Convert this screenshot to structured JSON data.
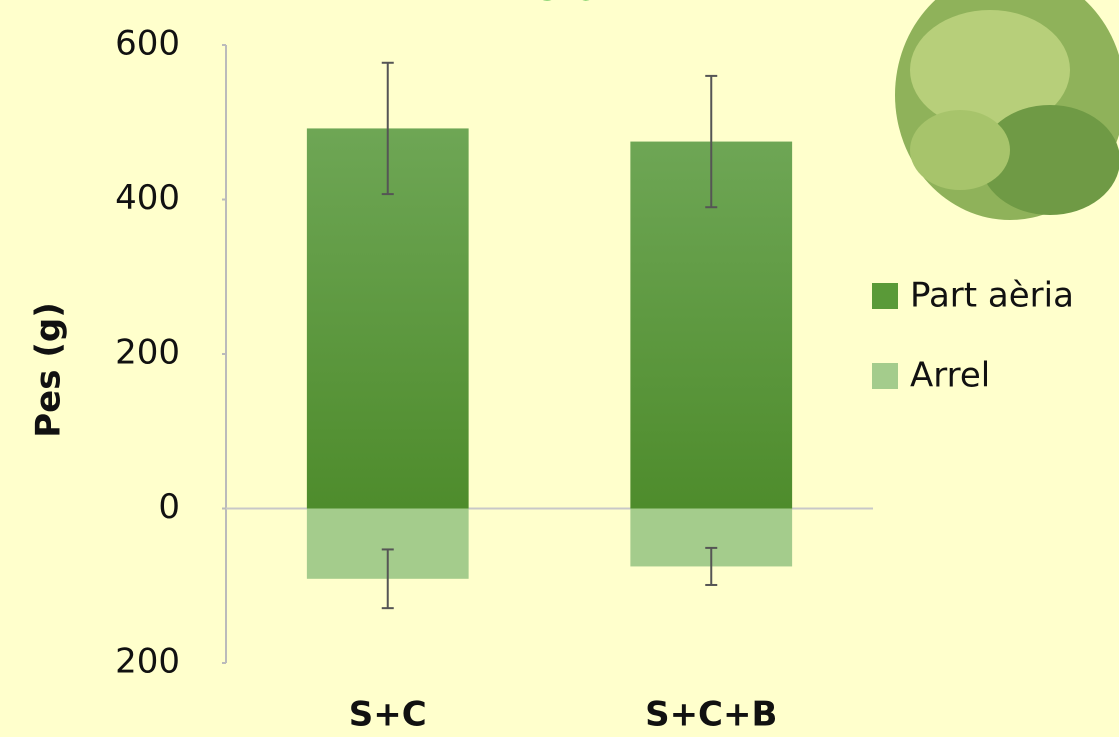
{
  "chart_data": {
    "type": "bar",
    "title": "Enciam",
    "y_label": "Pes (g)",
    "categories": [
      "S+C",
      "S+C+B"
    ],
    "series": [
      {
        "name": "Part aèria",
        "color": "#5a9a38",
        "values": [
          492,
          475
        ],
        "errors": [
          85,
          85
        ]
      },
      {
        "name": "Arrel",
        "color": "#a4cc8c",
        "values": [
          -91,
          -75
        ],
        "errors": [
          38,
          24
        ]
      }
    ],
    "ylim": [
      -200,
      600
    ],
    "yticks": [
      {
        "value": -200,
        "label": "200"
      },
      0,
      200,
      400,
      600
    ]
  }
}
